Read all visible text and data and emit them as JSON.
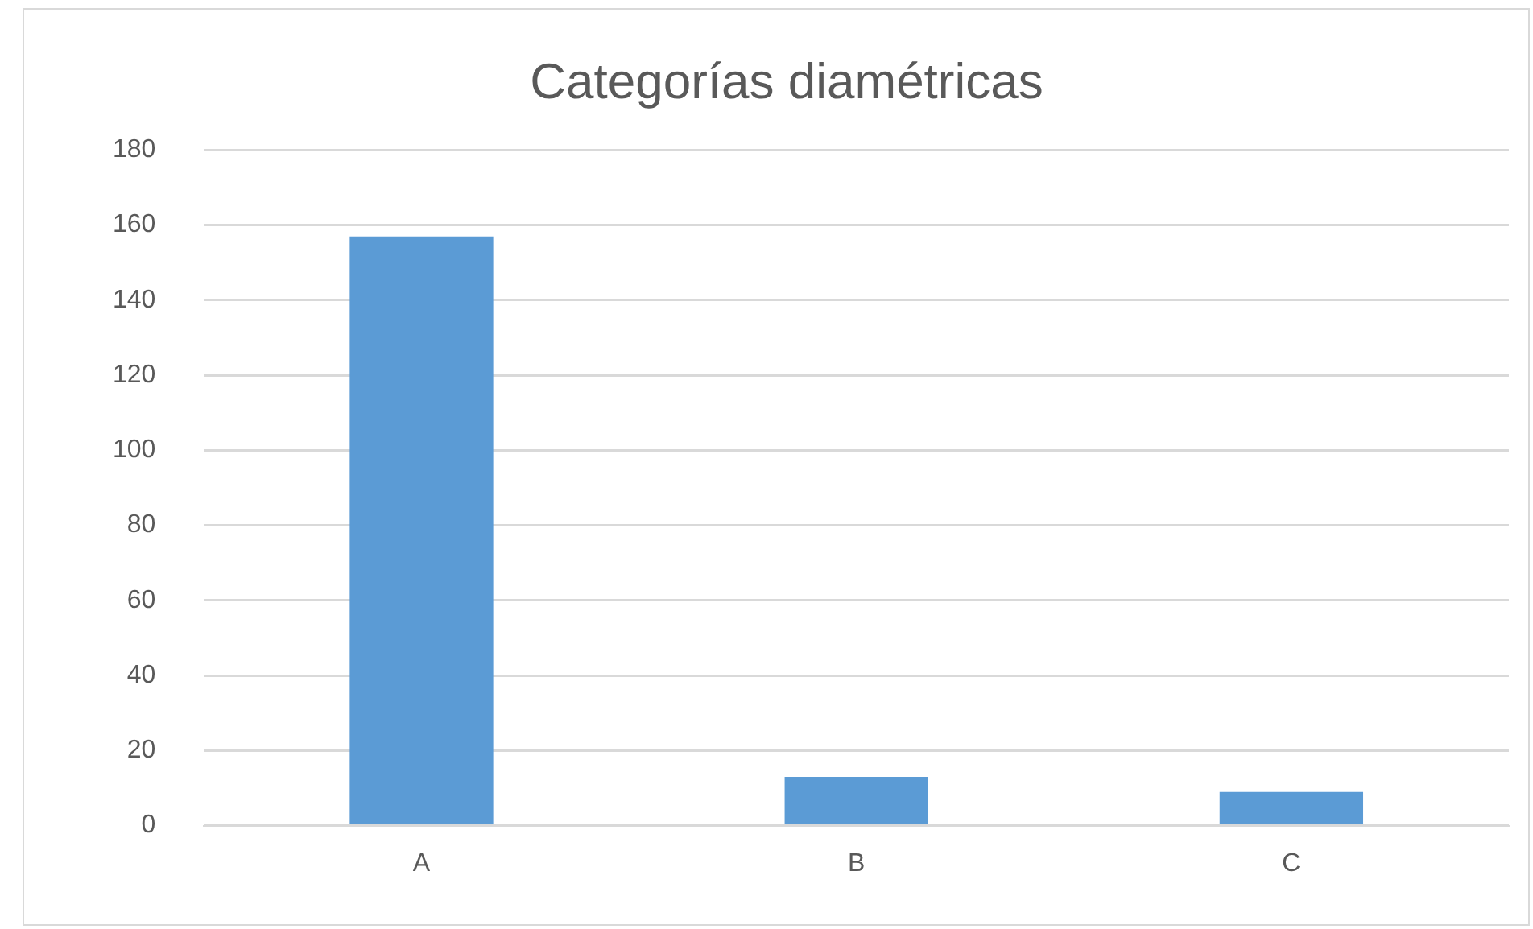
{
  "chart_data": {
    "type": "bar",
    "title": "Categorías diamétricas",
    "categories": [
      "A",
      "B",
      "C"
    ],
    "values": [
      157,
      13,
      9
    ],
    "color": "#5b9bd5",
    "ylim": [
      0,
      180
    ],
    "yticks": [
      0,
      20,
      40,
      60,
      80,
      100,
      120,
      140,
      160,
      180
    ],
    "grid": "y",
    "legend": false
  }
}
